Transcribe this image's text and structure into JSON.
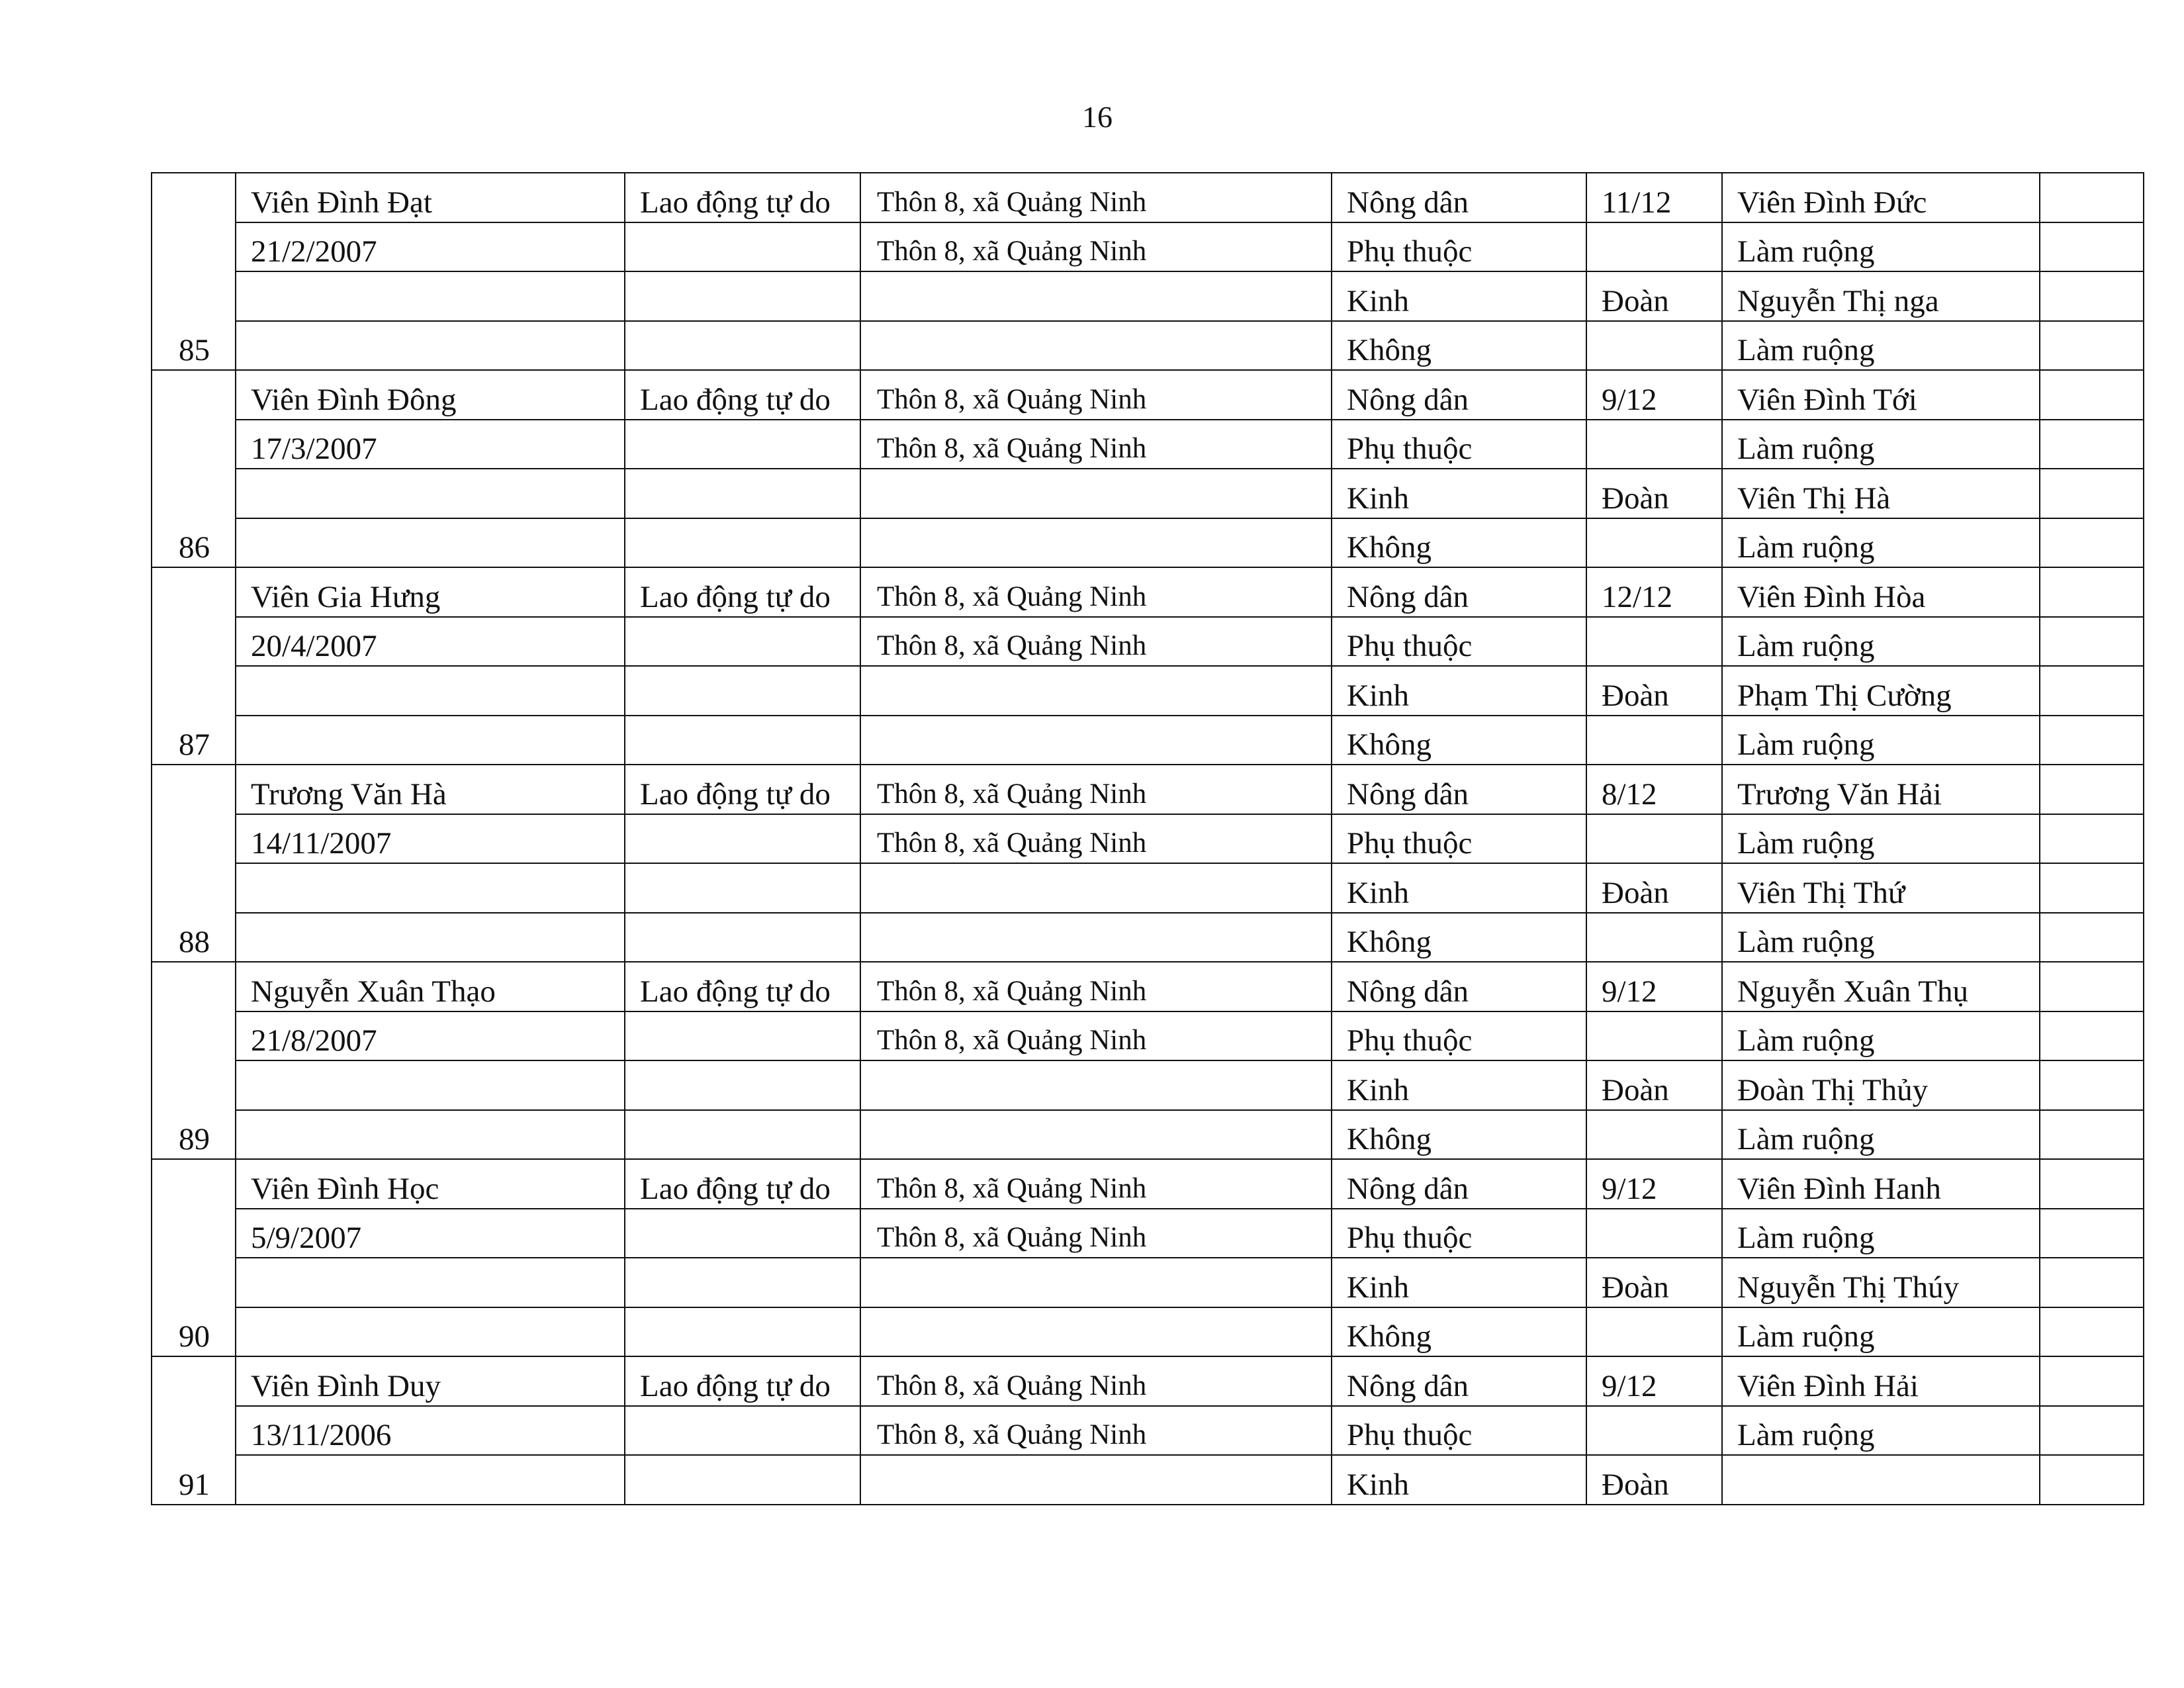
{
  "page_number": "16",
  "records": [
    {
      "no": "85",
      "name": "Viên Đình Đạt",
      "dob": "21/2/2007",
      "job": "Lao động tự do",
      "address": [
        "Thôn 8, xã Quảng Ninh",
        "Thôn 8, xã Quảng Ninh"
      ],
      "status": [
        "Nông dân",
        "Phụ thuộc",
        "Kinh",
        "Không"
      ],
      "grade": [
        "11/12",
        "",
        "Đoàn",
        ""
      ],
      "parents": [
        "Viên Đình Đức",
        "Làm ruộng",
        "Nguyễn Thị nga",
        "Làm ruộng"
      ]
    },
    {
      "no": "86",
      "name": "Viên Đình Đông",
      "dob": "17/3/2007",
      "job": "Lao động tự do",
      "address": [
        "Thôn 8, xã Quảng Ninh",
        "Thôn 8, xã Quảng Ninh"
      ],
      "status": [
        "Nông dân",
        "Phụ thuộc",
        "Kinh",
        "Không"
      ],
      "grade": [
        "9/12",
        "",
        "Đoàn",
        ""
      ],
      "parents": [
        "Viên Đình Tới",
        "Làm ruộng",
        "Viên Thị Hà",
        "Làm ruộng"
      ]
    },
    {
      "no": "87",
      "name": "Viên Gia Hưng",
      "dob": "20/4/2007",
      "job": "Lao động tự do",
      "address": [
        "Thôn 8, xã Quảng Ninh",
        "Thôn 8, xã Quảng Ninh"
      ],
      "status": [
        "Nông dân",
        "Phụ thuộc",
        "Kinh",
        "Không"
      ],
      "grade": [
        "12/12",
        "",
        "Đoàn",
        ""
      ],
      "parents": [
        "Viên Đình Hòa",
        "Làm ruộng",
        "Phạm Thị Cường",
        "Làm ruộng"
      ]
    },
    {
      "no": "88",
      "name": "Trương Văn Hà",
      "dob": "14/11/2007",
      "job": "Lao động tự do",
      "address": [
        "Thôn 8, xã Quảng Ninh",
        "Thôn 8, xã Quảng Ninh"
      ],
      "status": [
        "Nông dân",
        "Phụ thuộc",
        "Kinh",
        "Không"
      ],
      "grade": [
        "8/12",
        "",
        "Đoàn",
        ""
      ],
      "parents": [
        "Trương Văn Hải",
        "Làm ruộng",
        "Viên Thị Thứ",
        "Làm ruộng"
      ]
    },
    {
      "no": "89",
      "name": "Nguyễn Xuân Thạo",
      "dob": "21/8/2007",
      "job": "Lao động tự do",
      "address": [
        "Thôn 8, xã Quảng Ninh",
        "Thôn 8, xã Quảng Ninh"
      ],
      "status": [
        "Nông dân",
        "Phụ thuộc",
        "Kinh",
        "Không"
      ],
      "grade": [
        "9/12",
        "",
        "Đoàn",
        ""
      ],
      "parents": [
        "Nguyễn Xuân Thụ",
        "Làm ruộng",
        "Đoàn Thị Thủy",
        "Làm ruộng"
      ]
    },
    {
      "no": "90",
      "name": "Viên Đình Học",
      "dob": "5/9/2007",
      "job": "Lao động tự do",
      "address": [
        "Thôn 8, xã Quảng Ninh",
        "Thôn 8, xã Quảng Ninh"
      ],
      "status": [
        "Nông dân",
        "Phụ thuộc",
        "Kinh",
        "Không"
      ],
      "grade": [
        "9/12",
        "",
        "Đoàn",
        ""
      ],
      "parents": [
        "Viên Đình Hanh",
        "Làm ruộng",
        "Nguyễn Thị Thúy",
        "Làm ruộng"
      ]
    },
    {
      "no": "91",
      "name": "Viên Đình Duy",
      "dob": "13/11/2006",
      "job": "Lao động tự do",
      "address": [
        "Thôn 8, xã Quảng Ninh",
        "Thôn 8, xã Quảng Ninh"
      ],
      "status": [
        "Nông dân",
        "Phụ thuộc",
        "Kinh"
      ],
      "grade": [
        "9/12",
        "",
        "Đoàn"
      ],
      "parents": [
        "Viên Đình Hải",
        "Làm ruộng",
        ""
      ]
    }
  ]
}
